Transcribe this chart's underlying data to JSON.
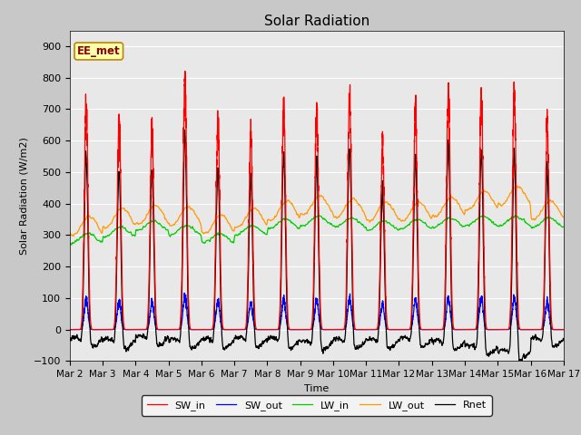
{
  "title": "Solar Radiation",
  "ylabel": "Solar Radiation (W/m2)",
  "xlabel": "Time",
  "ylim": [
    -100,
    950
  ],
  "yticks": [
    -100,
    0,
    100,
    200,
    300,
    400,
    500,
    600,
    700,
    800,
    900
  ],
  "date_labels": [
    "Mar 2",
    "Mar 3",
    "Mar 4",
    "Mar 5",
    "Mar 6",
    "Mar 7",
    "Mar 8",
    "Mar 9",
    "Mar 10",
    "Mar 11",
    "Mar 12",
    "Mar 13",
    "Mar 14",
    "Mar 15",
    "Mar 16",
    "Mar 17"
  ],
  "colors": {
    "SW_in": "#ff0000",
    "SW_out": "#0000ff",
    "LW_in": "#00cc00",
    "LW_out": "#ff9900",
    "Rnet": "#000000"
  },
  "legend_label": "EE_met",
  "fig_facecolor": "#c8c8c8",
  "ax_facecolor": "#e8e8e8",
  "n_days": 15,
  "n_per_day": 288,
  "sw_in_peaks": [
    770,
    710,
    680,
    840,
    720,
    670,
    760,
    750,
    800,
    630,
    760,
    820,
    810,
    800,
    700
  ],
  "lw_in_base": [
    290,
    310,
    330,
    315,
    290,
    315,
    335,
    345,
    340,
    330,
    335,
    340,
    345,
    345,
    340
  ],
  "lw_out_base": [
    330,
    355,
    365,
    360,
    335,
    355,
    378,
    395,
    385,
    375,
    375,
    390,
    410,
    425,
    380
  ]
}
